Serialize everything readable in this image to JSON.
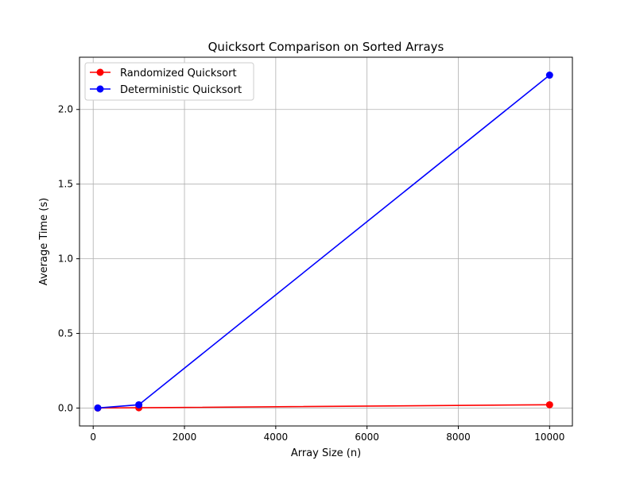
{
  "chart_data": {
    "type": "line",
    "title": "Quicksort Comparison on Sorted Arrays",
    "xlabel": "Array Size (n)",
    "ylabel": "Average Time (s)",
    "xlim": [
      -300,
      10500
    ],
    "ylim": [
      -0.12,
      2.35
    ],
    "xticks": [
      0,
      2000,
      4000,
      6000,
      8000,
      10000
    ],
    "yticks": [
      0.0,
      0.5,
      1.0,
      1.5,
      2.0
    ],
    "xtick_labels": [
      "0",
      "2000",
      "4000",
      "6000",
      "8000",
      "10000"
    ],
    "ytick_labels": [
      "0.0",
      "0.5",
      "1.0",
      "1.5",
      "2.0"
    ],
    "grid": true,
    "legend_position": "upper-left",
    "series": [
      {
        "name": "Randomized Quicksort",
        "color": "#ff0000",
        "marker": "circle",
        "x": [
          100,
          1000,
          10000
        ],
        "y": [
          0.0003,
          0.002,
          0.022
        ]
      },
      {
        "name": "Deterministic Quicksort",
        "color": "#0000ff",
        "marker": "circle",
        "x": [
          100,
          1000,
          10000
        ],
        "y": [
          0.0005,
          0.022,
          2.23
        ]
      }
    ]
  }
}
